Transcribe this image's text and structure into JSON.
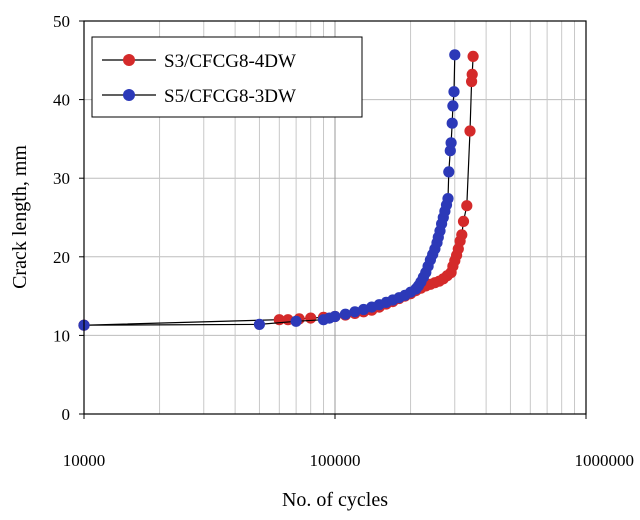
{
  "chart_data": {
    "type": "scatter",
    "title": "",
    "xlabel": "No. of cycles",
    "ylabel": "Crack length, mm",
    "x_scale": "log",
    "xlim": [
      10000,
      1000000
    ],
    "ylim": [
      0,
      50
    ],
    "x_ticks": [
      10000,
      100000,
      1000000
    ],
    "x_tick_labels": [
      "10000",
      "100000",
      "1000000"
    ],
    "y_ticks": [
      0,
      10,
      20,
      30,
      40,
      50
    ],
    "y_tick_labels": [
      "0",
      "10",
      "20",
      "30",
      "40",
      "50"
    ],
    "grid": true,
    "legend_position": "top-left",
    "series": [
      {
        "name": "S3/CFCG8-4DW",
        "color": "#d42a2a",
        "line_color": "#000000",
        "points": [
          [
            10000,
            11.3
          ],
          [
            60000,
            12.0
          ],
          [
            65000,
            12.0
          ],
          [
            72000,
            12.1
          ],
          [
            80000,
            12.2
          ],
          [
            90000,
            12.3
          ],
          [
            100000,
            12.4
          ],
          [
            110000,
            12.6
          ],
          [
            120000,
            12.8
          ],
          [
            130000,
            13.0
          ],
          [
            140000,
            13.2
          ],
          [
            150000,
            13.6
          ],
          [
            160000,
            14.0
          ],
          [
            170000,
            14.3
          ],
          [
            180000,
            14.7
          ],
          [
            190000,
            15.0
          ],
          [
            200000,
            15.3
          ],
          [
            210000,
            15.7
          ],
          [
            220000,
            16.0
          ],
          [
            230000,
            16.3
          ],
          [
            240000,
            16.5
          ],
          [
            250000,
            16.7
          ],
          [
            260000,
            16.9
          ],
          [
            270000,
            17.2
          ],
          [
            280000,
            17.6
          ],
          [
            290000,
            18.0
          ],
          [
            295000,
            18.8
          ],
          [
            300000,
            19.5
          ],
          [
            305000,
            20.2
          ],
          [
            310000,
            21.0
          ],
          [
            315000,
            22.0
          ],
          [
            320000,
            22.8
          ],
          [
            325000,
            24.5
          ],
          [
            335000,
            26.5
          ],
          [
            345000,
            36.0
          ],
          [
            350000,
            42.3
          ],
          [
            352000,
            43.2
          ],
          [
            355000,
            45.5
          ]
        ]
      },
      {
        "name": "S5/CFCG8-3DW",
        "color": "#2c39b8",
        "line_color": "#000000",
        "points": [
          [
            10000,
            11.3
          ],
          [
            50000,
            11.4
          ],
          [
            70000,
            11.8
          ],
          [
            90000,
            12.0
          ],
          [
            95000,
            12.2
          ],
          [
            100000,
            12.4
          ],
          [
            110000,
            12.7
          ],
          [
            120000,
            13.0
          ],
          [
            130000,
            13.3
          ],
          [
            140000,
            13.6
          ],
          [
            150000,
            13.9
          ],
          [
            160000,
            14.2
          ],
          [
            170000,
            14.5
          ],
          [
            180000,
            14.8
          ],
          [
            190000,
            15.1
          ],
          [
            200000,
            15.5
          ],
          [
            210000,
            15.9
          ],
          [
            215000,
            16.3
          ],
          [
            220000,
            16.8
          ],
          [
            225000,
            17.4
          ],
          [
            230000,
            18.0
          ],
          [
            235000,
            18.8
          ],
          [
            240000,
            19.6
          ],
          [
            245000,
            20.3
          ],
          [
            250000,
            21.0
          ],
          [
            255000,
            21.8
          ],
          [
            258000,
            22.5
          ],
          [
            262000,
            23.3
          ],
          [
            266000,
            24.2
          ],
          [
            270000,
            25.0
          ],
          [
            274000,
            25.8
          ],
          [
            278000,
            26.6
          ],
          [
            282000,
            27.4
          ],
          [
            284000,
            30.8
          ],
          [
            288000,
            33.5
          ],
          [
            290000,
            34.5
          ],
          [
            293000,
            37.0
          ],
          [
            295000,
            39.2
          ],
          [
            298000,
            41.0
          ],
          [
            300000,
            45.7
          ]
        ]
      }
    ]
  }
}
